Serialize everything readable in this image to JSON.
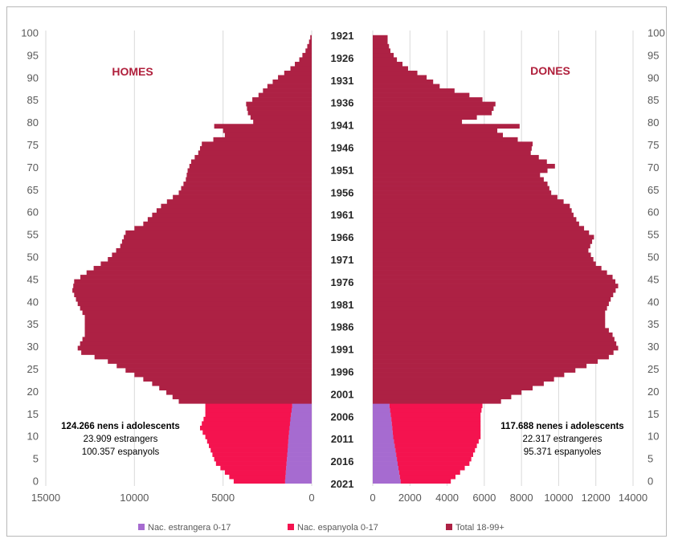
{
  "chart_data": {
    "type": "bar",
    "subtype": "population-pyramid",
    "colors": {
      "foreign_0_17": "#a66bd0",
      "spanish_0_17": "#f4134f",
      "total_18_99": "#ad2144",
      "title": "#b0203c"
    },
    "left_title": "HOMES",
    "right_title": "DONES",
    "left_xlim": [
      0,
      15000
    ],
    "left_xticks": [
      "15000",
      "10000",
      "5000",
      "0"
    ],
    "right_xlim": [
      0,
      14000
    ],
    "right_xticks": [
      "0",
      "2000",
      "4000",
      "6000",
      "8000",
      "10000",
      "12000",
      "14000"
    ],
    "ylim": [
      0,
      100
    ],
    "yticks": [
      "0",
      "5",
      "10",
      "15",
      "20",
      "25",
      "30",
      "35",
      "40",
      "45",
      "50",
      "55",
      "60",
      "65",
      "70",
      "75",
      "80",
      "85",
      "90",
      "95",
      "100"
    ],
    "birth_year_labels": [
      "1921",
      "1926",
      "1931",
      "1936",
      "1941",
      "1946",
      "1951",
      "1956",
      "1961",
      "1966",
      "1971",
      "1976",
      "1981",
      "1986",
      "1991",
      "1996",
      "2001",
      "2006",
      "2011",
      "2016",
      "2021"
    ],
    "legend": [
      {
        "label": "Nac. estrangera 0-17",
        "color": "#a66bd0"
      },
      {
        "label": "Nac. espanyola 0-17",
        "color": "#f4134f"
      },
      {
        "label": "Total 18-99+",
        "color": "#ad2144"
      }
    ],
    "annotations": {
      "male": [
        "124.266 nens i adolescents",
        "23.909 estrangers",
        "100.357 espanyols"
      ],
      "female": [
        "117.688 nenes i adolescents",
        "22.317 estrangeres",
        "95.371 espanyoles"
      ]
    },
    "male_key_points": [
      [
        0,
        4400
      ],
      [
        4,
        5400
      ],
      [
        10,
        6000
      ],
      [
        12,
        6300
      ],
      [
        15,
        6000
      ],
      [
        17,
        6000
      ],
      [
        18,
        7500
      ],
      [
        20,
        8200
      ],
      [
        22,
        9000
      ],
      [
        25,
        10500
      ],
      [
        27,
        11500
      ],
      [
        29,
        13000
      ],
      [
        30,
        13200
      ],
      [
        33,
        12800
      ],
      [
        37,
        12800
      ],
      [
        40,
        13200
      ],
      [
        43,
        13500
      ],
      [
        45,
        13400
      ],
      [
        47,
        12700
      ],
      [
        50,
        11500
      ],
      [
        53,
        10800
      ],
      [
        56,
        10500
      ],
      [
        58,
        9500
      ],
      [
        60,
        9000
      ],
      [
        62,
        8500
      ],
      [
        65,
        7500
      ],
      [
        68,
        7100
      ],
      [
        70,
        7000
      ],
      [
        72,
        6800
      ],
      [
        74,
        6400
      ],
      [
        76,
        6200
      ],
      [
        78,
        4900
      ],
      [
        79,
        5000
      ],
      [
        80,
        5500
      ],
      [
        81,
        3300
      ],
      [
        83,
        3600
      ],
      [
        85,
        3700
      ],
      [
        87,
        3000
      ],
      [
        89,
        2500
      ],
      [
        91,
        1900
      ],
      [
        93,
        1200
      ],
      [
        95,
        700
      ],
      [
        97,
        350
      ],
      [
        99,
        150
      ],
      [
        100,
        80
      ]
    ],
    "male_foreign_key_points": [
      [
        0,
        1500
      ],
      [
        5,
        1400
      ],
      [
        10,
        1300
      ],
      [
        14,
        1200
      ],
      [
        17,
        1100
      ]
    ],
    "female_key_points": [
      [
        0,
        4200
      ],
      [
        4,
        5200
      ],
      [
        10,
        5800
      ],
      [
        15,
        5800
      ],
      [
        17,
        5900
      ],
      [
        18,
        6900
      ],
      [
        20,
        8000
      ],
      [
        22,
        9200
      ],
      [
        24,
        10300
      ],
      [
        26,
        11500
      ],
      [
        28,
        12700
      ],
      [
        30,
        13200
      ],
      [
        33,
        12900
      ],
      [
        35,
        12500
      ],
      [
        38,
        12500
      ],
      [
        41,
        12800
      ],
      [
        44,
        13200
      ],
      [
        46,
        12900
      ],
      [
        49,
        12000
      ],
      [
        52,
        11600
      ],
      [
        55,
        11900
      ],
      [
        58,
        11100
      ],
      [
        60,
        10800
      ],
      [
        62,
        10600
      ],
      [
        65,
        9600
      ],
      [
        67,
        9400
      ],
      [
        69,
        9000
      ],
      [
        71,
        9800
      ],
      [
        74,
        8500
      ],
      [
        76,
        8600
      ],
      [
        78,
        7000
      ],
      [
        79,
        6700
      ],
      [
        80,
        7900
      ],
      [
        81,
        4800
      ],
      [
        83,
        6400
      ],
      [
        85,
        6600
      ],
      [
        87,
        5200
      ],
      [
        89,
        3600
      ],
      [
        91,
        2900
      ],
      [
        93,
        1900
      ],
      [
        95,
        1300
      ],
      [
        97,
        950
      ],
      [
        99,
        800
      ],
      [
        100,
        800
      ]
    ],
    "female_foreign_key_points": [
      [
        0,
        1500
      ],
      [
        5,
        1300
      ],
      [
        10,
        1100
      ],
      [
        14,
        1000
      ],
      [
        17,
        900
      ]
    ]
  }
}
